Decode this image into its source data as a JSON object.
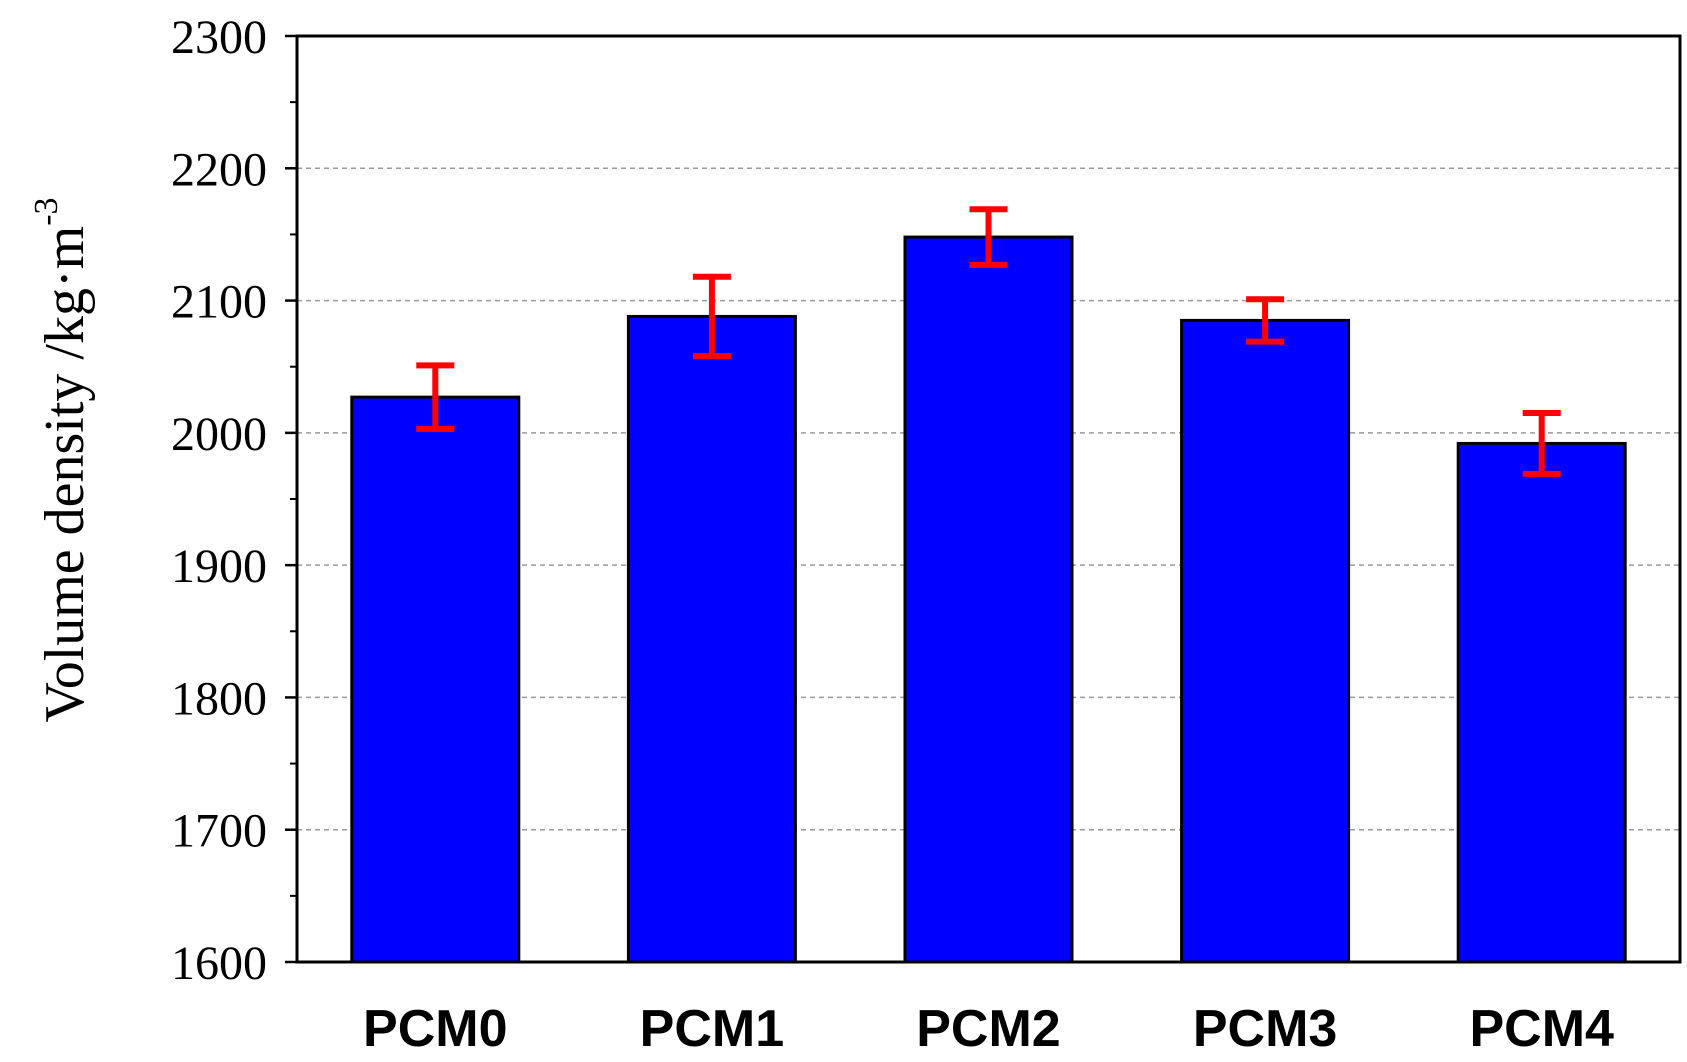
{
  "chart_data": {
    "type": "bar",
    "categories": [
      "PCM0",
      "PCM1",
      "PCM2",
      "PCM3",
      "PCM4"
    ],
    "values": [
      2027,
      2088,
      2148,
      2085,
      1992
    ],
    "errors": [
      24,
      30,
      21,
      16,
      23
    ],
    "ylabel": "Volume density /kg·m",
    "ylabel_superscript": "-3",
    "xlabel": "",
    "ylim": [
      1600,
      2300
    ],
    "yticks": [
      "1600",
      "1700",
      "1800",
      "1900",
      "2000",
      "2100",
      "2200",
      "2300"
    ],
    "ytick_values": [
      1600,
      1700,
      1800,
      1900,
      2000,
      2100,
      2200,
      2300
    ],
    "grid": "horizontal dashed",
    "colors": {
      "bar": "#0000ff",
      "bar_edge": "#000000",
      "error_bar": "#ff0000",
      "grid": "#9a9a9a"
    }
  }
}
